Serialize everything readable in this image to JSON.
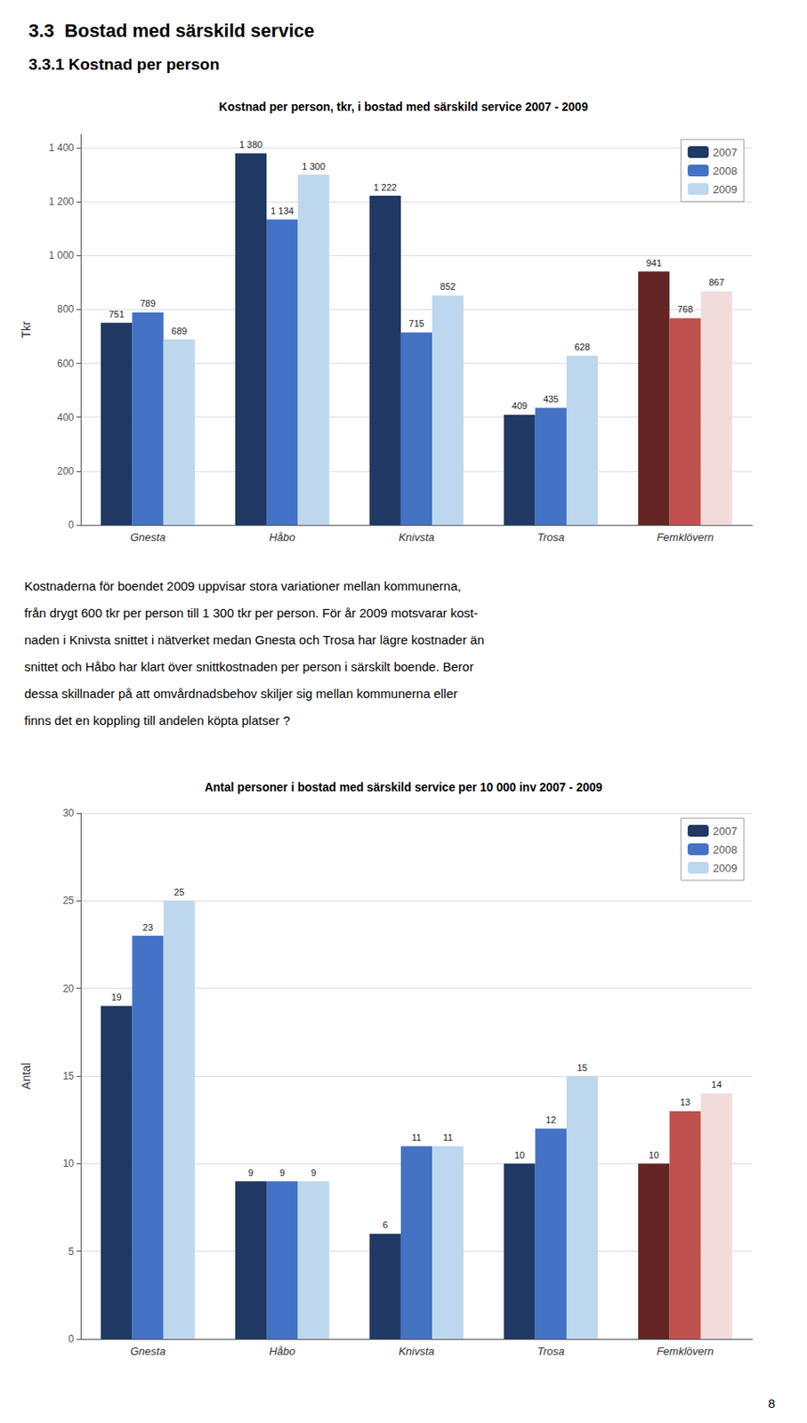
{
  "title": "3.3  Bostad med särskild service",
  "subtitle": "3.3.1 Kostnad per person",
  "text": [
    "Kostnaderna för boendet 2009 uppvisar stora variationer mellan kommunerna,",
    "från drygt 600 tkr per person till 1 300 tkr per person. För år 2009 motsvarar kost-",
    "naden i Knivsta snittet i nätverket medan Gnesta och Trosa har lägre kostnader än",
    "snittet och Håbo har klart över snittkostnaden per person i särskilt boende. Beror",
    "dessa skillnader på att omvårdnadsbehov skiljer sig mellan kommunerna eller",
    "finns det en koppling till andelen köpta platser ?"
  ],
  "annotations": [
    "8"
  ],
  "chart_data": [
    {
      "type": "bar",
      "title": "Kostnad per person, tkr, i bostad med särskild service 2007 - 2009",
      "ylabel": "Tkr",
      "categories": [
        "Gnesta",
        "Håbo",
        "Knivsta",
        "Trosa",
        "Femklövern"
      ],
      "series": [
        {
          "name": "2007",
          "color": "#1F3864",
          "colors": [
            "#1F3864",
            "#1F3864",
            "#1F3864",
            "#1F3864",
            "#632523"
          ],
          "values": [
            751,
            1380,
            1222,
            409,
            941
          ],
          "value_labels": [
            "751",
            "1 380",
            "1 222",
            "409",
            "941"
          ]
        },
        {
          "name": "2008",
          "color": "#4472C4",
          "colors": [
            "#4472C4",
            "#4472C4",
            "#4472C4",
            "#4472C4",
            "#C0504D"
          ],
          "values": [
            789,
            1134,
            715,
            435,
            768
          ],
          "value_labels": [
            "789",
            "1 134",
            "715",
            "435",
            "768"
          ]
        },
        {
          "name": "2009",
          "color": "#BDD7EE",
          "colors": [
            "#BDD7EE",
            "#BDD7EE",
            "#BDD7EE",
            "#BDD7EE",
            "#F2DCDB"
          ],
          "values": [
            689,
            1300,
            852,
            628,
            867
          ],
          "value_labels": [
            "689",
            "1 300",
            "852",
            "628",
            "867"
          ]
        }
      ],
      "ylim": [
        0,
        1450
      ],
      "yticks": [
        0,
        200,
        400,
        600,
        800,
        {
          "value": 1000,
          "label": "1 000"
        },
        {
          "value": 1200,
          "label": "1 200"
        },
        {
          "value": 1400,
          "label": "1 400"
        }
      ],
      "grid": true,
      "legend": "upper right",
      "data_labels": true
    },
    {
      "type": "bar",
      "title": "Antal personer i bostad med särskild service per 10 000 inv 2007 - 2009",
      "ylabel": "Antal",
      "categories": [
        "Gnesta",
        "Håbo",
        "Knivsta",
        "Trosa",
        "Femklövern"
      ],
      "series": [
        {
          "name": "2007",
          "color": "#1F3864",
          "colors": [
            "#1F3864",
            "#1F3864",
            "#1F3864",
            "#1F3864",
            "#632523"
          ],
          "values": [
            19,
            9,
            6,
            10,
            10
          ]
        },
        {
          "name": "2008",
          "color": "#4472C4",
          "colors": [
            "#4472C4",
            "#4472C4",
            "#4472C4",
            "#4472C4",
            "#C0504D"
          ],
          "values": [
            23,
            9,
            11,
            12,
            13
          ]
        },
        {
          "name": "2009",
          "color": "#BDD7EE",
          "colors": [
            "#BDD7EE",
            "#BDD7EE",
            "#BDD7EE",
            "#BDD7EE",
            "#F2DCDB"
          ],
          "values": [
            25,
            9,
            11,
            15,
            14
          ]
        }
      ],
      "ylim": [
        0,
        30
      ],
      "yticks": [
        0,
        5,
        10,
        15,
        20,
        25,
        30
      ],
      "grid": true,
      "legend": "upper right",
      "data_labels": true
    }
  ]
}
